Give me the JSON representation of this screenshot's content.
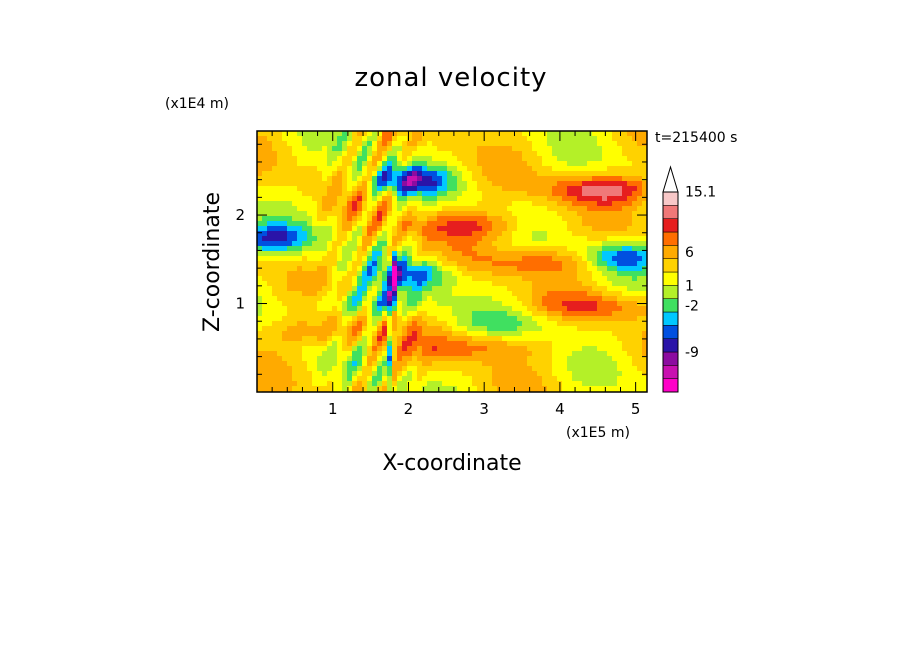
{
  "chart_data": {
    "type": "heatmap",
    "title": "zonal velocity",
    "xlabel": "X-coordinate",
    "ylabel": "Z-coordinate",
    "x_scale_label": "(x1E5 m)",
    "y_scale_label": "(x1E4 m)",
    "time_label": "t=215400 s",
    "xlim": [
      0,
      5.15
    ],
    "ylim": [
      0,
      2.95
    ],
    "x_ticks": [
      {
        "value": 1,
        "label": "1"
      },
      {
        "value": 2,
        "label": "2"
      },
      {
        "value": 3,
        "label": "3"
      },
      {
        "value": 4,
        "label": "4"
      },
      {
        "value": 5,
        "label": "5"
      }
    ],
    "y_ticks": [
      {
        "value": 1,
        "label": "1"
      },
      {
        "value": 2,
        "label": "2"
      }
    ],
    "colorbar": {
      "levels": [
        {
          "color": "#ff00c8"
        },
        {
          "color": "#c810b0"
        },
        {
          "color": "#8c0ca0"
        },
        {
          "color": "#2a14a8"
        },
        {
          "color": "#0050e0"
        },
        {
          "color": "#00c8ff"
        },
        {
          "color": "#40e060"
        },
        {
          "color": "#b4f028"
        },
        {
          "color": "#ffff00"
        },
        {
          "color": "#ffd200"
        },
        {
          "color": "#ffaa00"
        },
        {
          "color": "#ff6e00"
        },
        {
          "color": "#e61e1e"
        },
        {
          "color": "#f07878"
        },
        {
          "color": "#f8c8c8"
        }
      ],
      "labels": [
        {
          "value": 15.1,
          "label": "15.1"
        },
        {
          "value": 6,
          "label": "6"
        },
        {
          "value": 1,
          "label": "1"
        },
        {
          "value": -2,
          "label": "-2"
        },
        {
          "value": -9,
          "label": "-9"
        }
      ]
    },
    "features": [
      {
        "kind": "negative-jet",
        "x": 2.0,
        "z": 2.4,
        "strength": -10
      },
      {
        "kind": "negative-jet",
        "x": 0.2,
        "z": 1.75,
        "strength": -9
      },
      {
        "kind": "negative-jet",
        "x": 4.8,
        "z": 1.55,
        "strength": -9
      },
      {
        "kind": "negative-jet",
        "x": 2.1,
        "z": 1.35,
        "strength": -8
      },
      {
        "kind": "negative-band",
        "x": 1.5,
        "z": 1.05,
        "strength": -5
      },
      {
        "kind": "negative-band",
        "x": 3.5,
        "z": 0.8,
        "strength": -3
      },
      {
        "kind": "positive-band",
        "x": 4.6,
        "z": 2.3,
        "strength": 8
      },
      {
        "kind": "positive-band",
        "x": 2.8,
        "z": 1.9,
        "strength": 6
      },
      {
        "kind": "positive-band",
        "x": 3.8,
        "z": 1.5,
        "strength": 6
      },
      {
        "kind": "positive-band",
        "x": 4.6,
        "z": 1.0,
        "strength": 5
      },
      {
        "kind": "positive-band",
        "x": 2.9,
        "z": 0.55,
        "strength": 5
      },
      {
        "kind": "positive-band",
        "x": 0.9,
        "z": 0.7,
        "strength": 4
      }
    ]
  }
}
